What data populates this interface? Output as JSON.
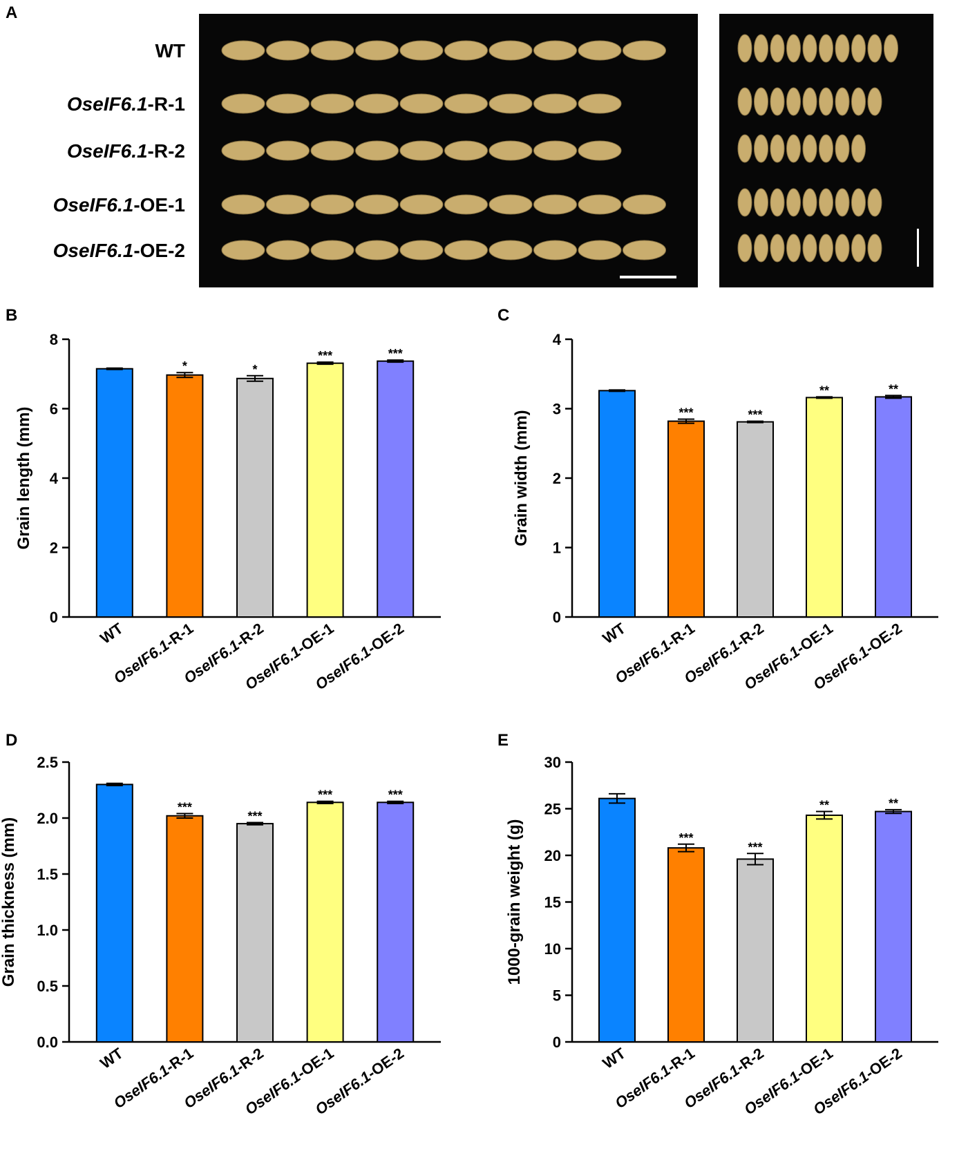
{
  "panel_a": {
    "label": "A",
    "rows": [
      {
        "label": "WT",
        "length_grains": 10,
        "width_grains": 10
      },
      {
        "label": "OseIF6.1-R-1",
        "length_grains": 9,
        "width_grains": 9
      },
      {
        "label": "OseIF6.1-R-2",
        "length_grains": 9,
        "width_grains": 8
      },
      {
        "label": "OseIF6.1-OE-1",
        "length_grains": 10,
        "width_grains": 9
      },
      {
        "label": "OseIF6.1-OE-2",
        "length_grains": 10,
        "width_grains": 9
      }
    ]
  },
  "colors": {
    "WT": "#0a84ff",
    "R1": "#ff8000",
    "R2": "#c8c8c8",
    "OE1": "#ffff80",
    "OE2": "#8080ff",
    "photo_bg": "#070707",
    "grain": "#c9ad6e"
  },
  "chart_data": [
    {
      "panel": "B",
      "type": "bar",
      "categories": [
        "WT",
        "OseIF6.1-R-1",
        "OseIF6.1-R-2",
        "OseIF6.1-OE-1",
        "OseIF6.1-OE-2"
      ],
      "values": [
        7.15,
        6.97,
        6.87,
        7.31,
        7.37
      ],
      "errors": [
        0.02,
        0.07,
        0.08,
        0.03,
        0.03
      ],
      "significance": [
        "",
        "*",
        "*",
        "***",
        "***"
      ],
      "ylabel": "Grain length (mm)",
      "ylim": [
        0,
        8
      ],
      "yticks": [
        "0",
        "2",
        "4",
        "6",
        "8"
      ]
    },
    {
      "panel": "C",
      "type": "bar",
      "categories": [
        "WT",
        "OseIF6.1-R-1",
        "OseIF6.1-R-2",
        "OseIF6.1-OE-1",
        "OseIF6.1-OE-2"
      ],
      "values": [
        3.26,
        2.82,
        2.81,
        3.16,
        3.17
      ],
      "errors": [
        0.01,
        0.03,
        0.01,
        0.01,
        0.02
      ],
      "significance": [
        "",
        "***",
        "***",
        "**",
        "**"
      ],
      "ylabel": "Grain width (mm)",
      "ylim": [
        0,
        4
      ],
      "yticks": [
        "0",
        "1",
        "2",
        "3",
        "4"
      ]
    },
    {
      "panel": "D",
      "type": "bar",
      "categories": [
        "WT",
        "OseIF6.1-R-1",
        "OseIF6.1-R-2",
        "OseIF6.1-OE-1",
        "OseIF6.1-OE-2"
      ],
      "values": [
        2.3,
        2.02,
        1.95,
        2.14,
        2.14
      ],
      "errors": [
        0.01,
        0.02,
        0.01,
        0.01,
        0.01
      ],
      "significance": [
        "",
        "***",
        "***",
        "***",
        "***"
      ],
      "ylabel": "Grain thickness (mm)",
      "ylim": [
        0,
        2.5
      ],
      "yticks": [
        "0.0",
        "0.5",
        "1.0",
        "1.5",
        "2.0",
        "2.5"
      ]
    },
    {
      "panel": "E",
      "type": "bar",
      "categories": [
        "WT",
        "OseIF6.1-R-1",
        "OseIF6.1-R-2",
        "OseIF6.1-OE-1",
        "OseIF6.1-OE-2"
      ],
      "values": [
        26.1,
        20.8,
        19.6,
        24.3,
        24.7
      ],
      "errors": [
        0.5,
        0.4,
        0.6,
        0.4,
        0.2
      ],
      "significance": [
        "",
        "***",
        "***",
        "**",
        "**"
      ],
      "ylabel": "1000-grain weight (g)",
      "ylim": [
        0,
        30
      ],
      "yticks": [
        "0",
        "5",
        "10",
        "15",
        "20",
        "25",
        "30"
      ]
    }
  ]
}
